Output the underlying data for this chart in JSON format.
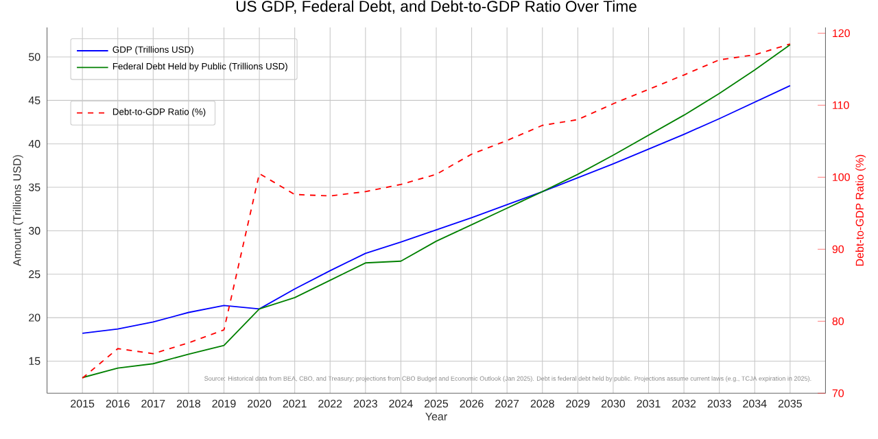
{
  "chart_data": {
    "type": "line",
    "title": "US GDP, Federal Debt, and Debt-to-GDP Ratio Over Time",
    "xlabel": "Year",
    "ylabel": "Amount (Trillions USD)",
    "y2label": "Debt-to-GDP Ratio (%)",
    "x": [
      2015,
      2016,
      2017,
      2018,
      2019,
      2020,
      2021,
      2022,
      2023,
      2024,
      2025,
      2026,
      2027,
      2028,
      2029,
      2030,
      2031,
      2032,
      2033,
      2034,
      2035
    ],
    "series": [
      {
        "name": "GDP (Trillions USD)",
        "color": "#0000ff",
        "line_style": "solid",
        "values": [
          18.2,
          18.7,
          19.5,
          20.6,
          21.4,
          21.0,
          23.3,
          25.4,
          27.4,
          28.7,
          30.1,
          31.5,
          33.0,
          34.5,
          36.1,
          37.7,
          39.4,
          41.1,
          42.9,
          44.8,
          46.7
        ]
      },
      {
        "name": "Federal Debt Held by Public (Trillions USD)",
        "color": "#008000",
        "line_style": "solid",
        "values": [
          13.1,
          14.2,
          14.7,
          15.8,
          16.8,
          21.0,
          22.3,
          24.3,
          26.3,
          26.5,
          28.8,
          30.7,
          32.6,
          34.5,
          36.5,
          38.7,
          41.0,
          43.3,
          45.8,
          48.5,
          51.4
        ]
      },
      {
        "name": "Debt-to-GDP Ratio (%)",
        "color": "#ff0000",
        "line_style": "dashed",
        "axis": "y2",
        "values": [
          72.1,
          76.2,
          75.5,
          77.0,
          78.8,
          100.5,
          97.6,
          97.4,
          98.0,
          99.0,
          100.4,
          103.2,
          105.1,
          107.2,
          108.0,
          110.2,
          112.2,
          114.2,
          116.3,
          117.0,
          118.5
        ]
      }
    ],
    "xlim": [
      2014,
      2036
    ],
    "xticks": [
      2015,
      2016,
      2017,
      2018,
      2019,
      2020,
      2021,
      2022,
      2023,
      2024,
      2025,
      2026,
      2027,
      2028,
      2029,
      2030,
      2031,
      2032,
      2033,
      2034,
      2035
    ],
    "ylim": [
      11.3,
      53.4
    ],
    "yticks": [
      15,
      20,
      25,
      30,
      35,
      40,
      45,
      50
    ],
    "y2lim": [
      70,
      120.8
    ],
    "y2ticks": [
      70,
      80,
      90,
      100,
      110,
      120
    ],
    "grid": true,
    "legend": "top left",
    "annotations": [
      "Source: Historical data from BEA, CBO, and Treasury; projections from CBO Budget and Economic Outlook (Jan 2025). Debt is federal debt held by public. Projections assume current laws (e.g., TCJA expiration in 2025)."
    ]
  }
}
